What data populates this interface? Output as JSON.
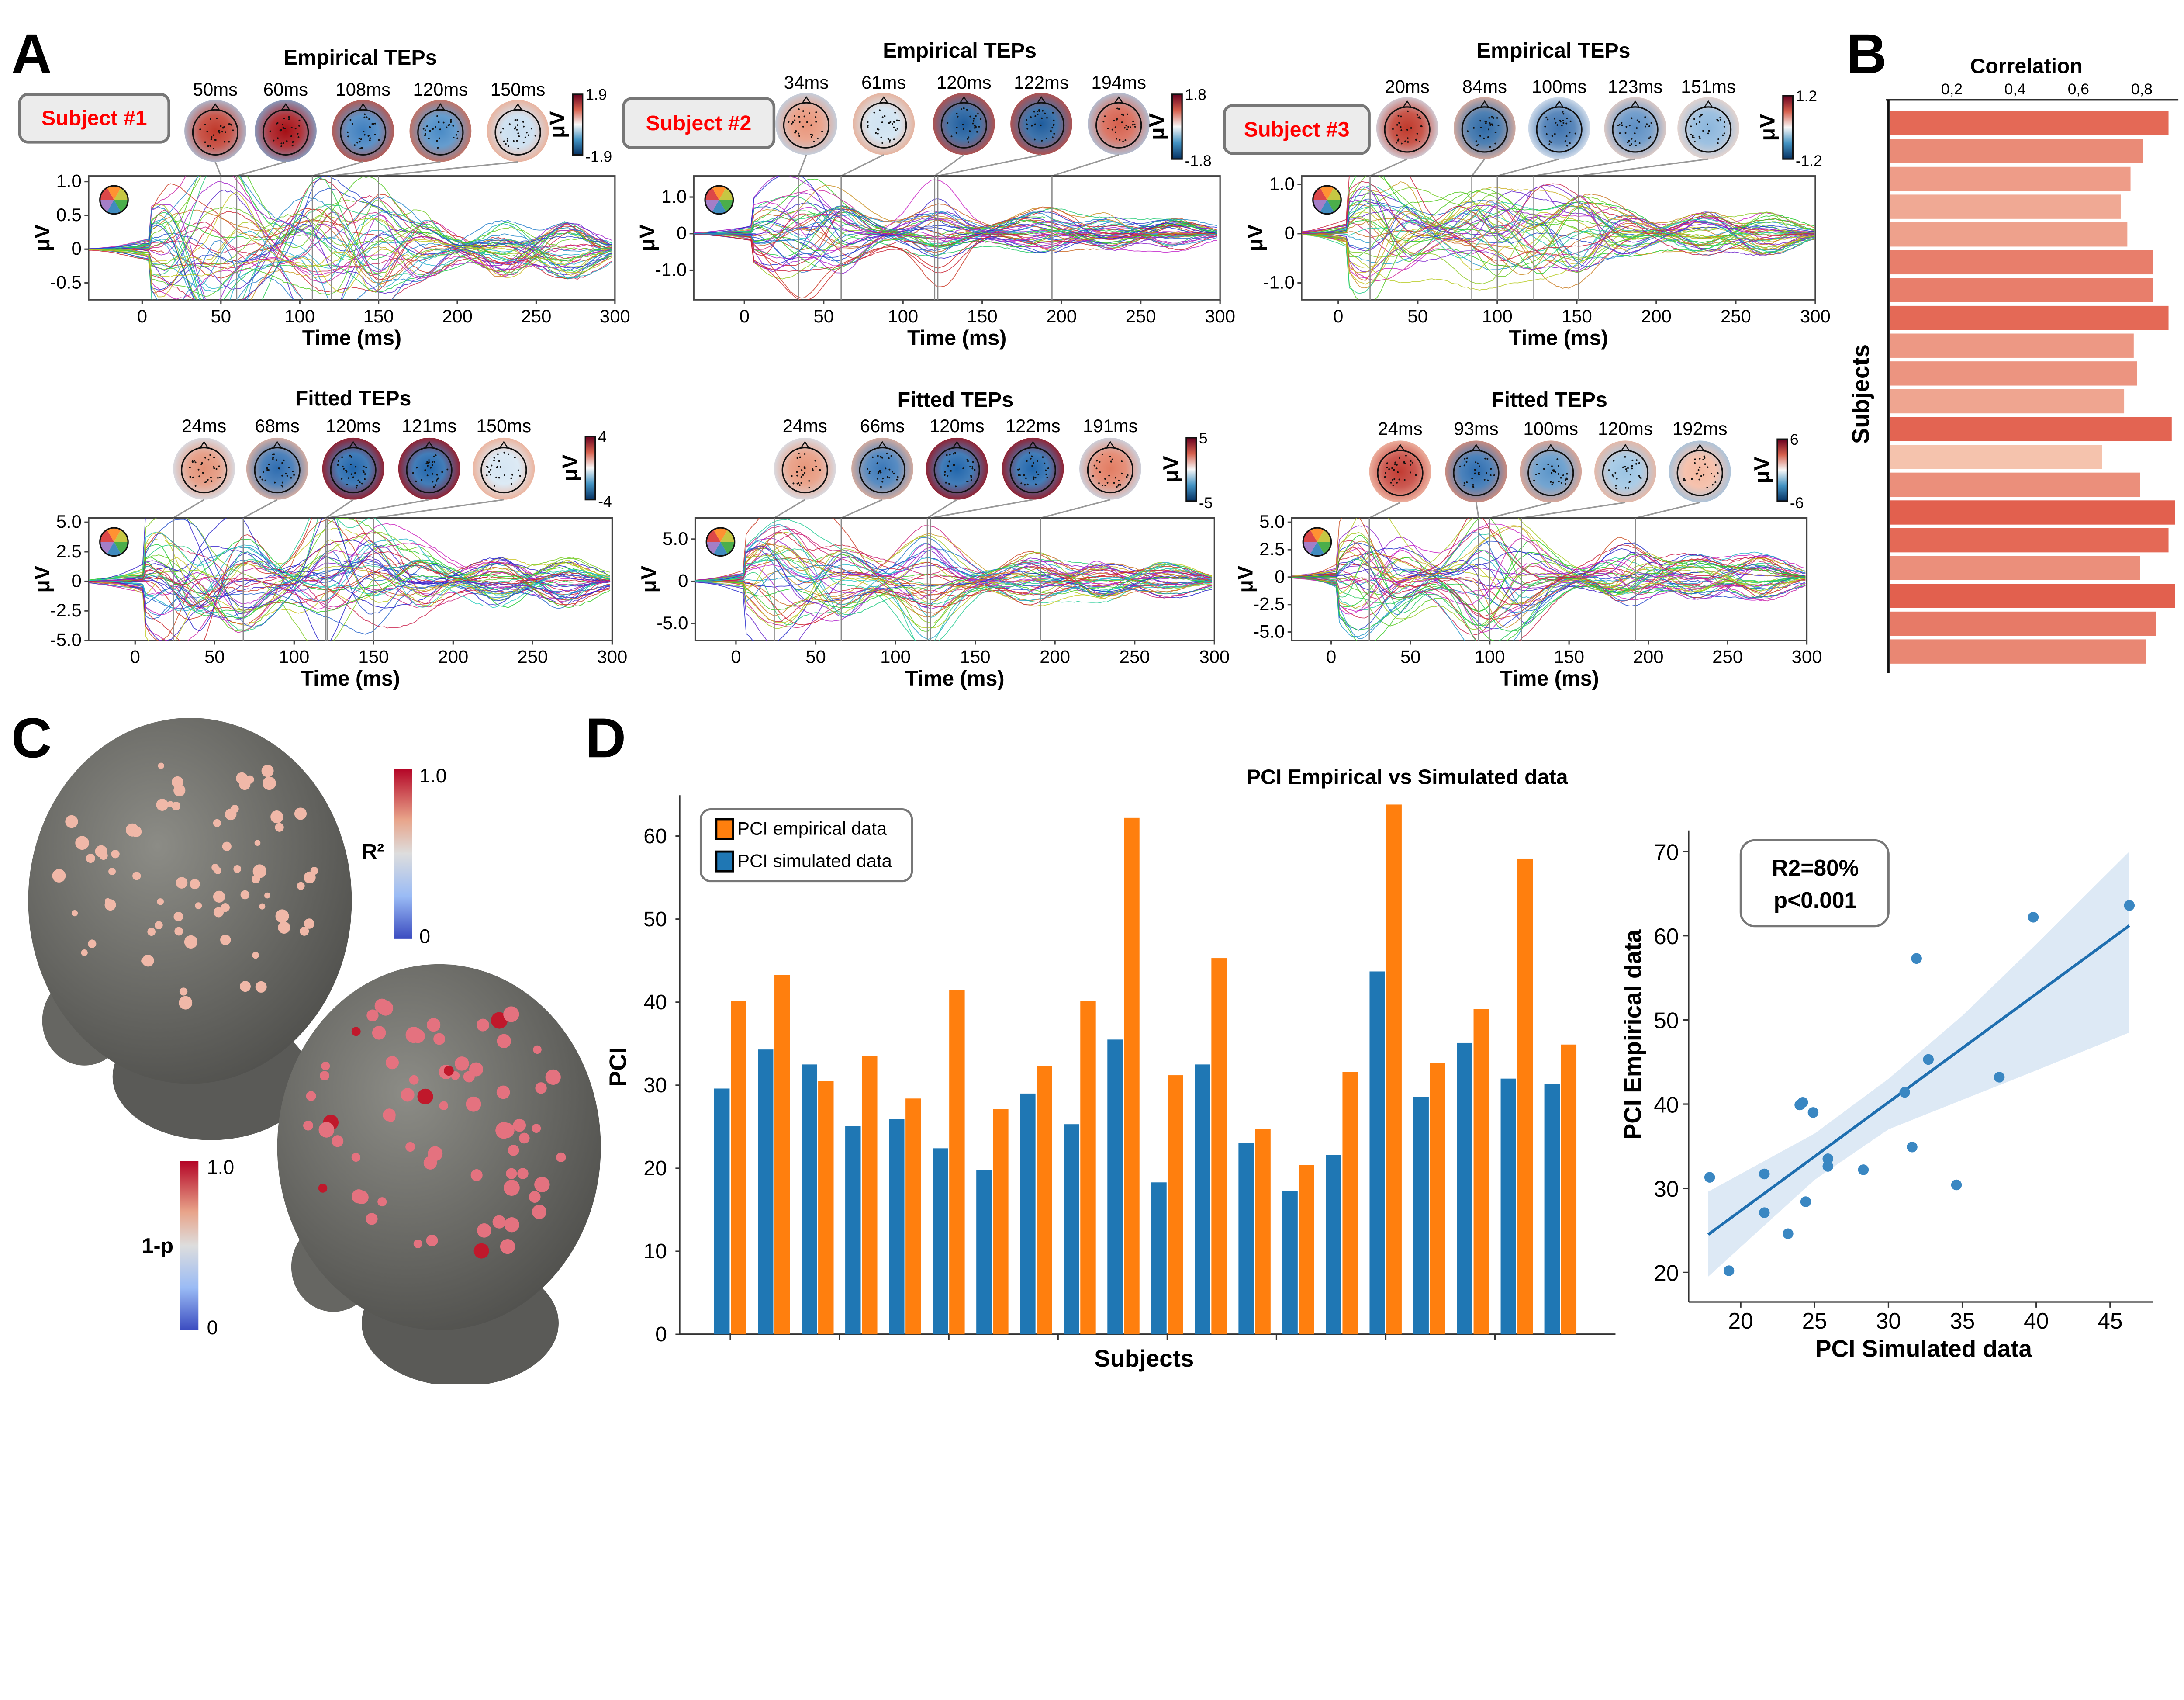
{
  "panel_labels": {
    "a": "A",
    "b": "B",
    "c": "C",
    "d": "D"
  },
  "panel_a": {
    "tep_panels": [
      {
        "id": "s1-empirical",
        "title": "Empirical TEPs",
        "subject_label": "Subject #1",
        "topomaps": [
          {
            "label": "50ms",
            "time": 50,
            "outer": "#a9cbe6",
            "inner": "#c0392b"
          },
          {
            "label": "60ms",
            "time": 60,
            "outer": "#7fb0d8",
            "inner": "#a50f15"
          },
          {
            "label": "108ms",
            "time": 108,
            "outer": "#c9503c",
            "inner": "#3f7fbf"
          },
          {
            "label": "120ms",
            "time": 120,
            "outer": "#d66a4f",
            "inner": "#4a8bc6"
          },
          {
            "label": "150ms",
            "time": 150,
            "outer": "#f0a98c",
            "inner": "#c8ddef"
          }
        ],
        "colorbar": {
          "max": "1.9",
          "min": "-1.9",
          "unit": "μV"
        },
        "xticks": [
          "0",
          "50",
          "100",
          "150",
          "200",
          "250",
          "300"
        ],
        "yticks": [
          {
            "label": "1.0",
            "value": 1
          },
          {
            "label": "0.5",
            "value": 0.5
          },
          {
            "label": "0",
            "value": 0
          },
          {
            "label": "-0.5",
            "value": -0.5
          }
        ],
        "xlabel": "Time (ms)",
        "ylabel": "μV"
      },
      {
        "id": "s2-empirical",
        "title": "Empirical TEPs",
        "subject_label": "Subject #2",
        "topomaps": [
          {
            "label": "34ms",
            "time": 34,
            "outer": "#bcd7ec",
            "inner": "#e8957a"
          },
          {
            "label": "61ms",
            "time": 61,
            "outer": "#eaa88c",
            "inner": "#cfe2f1"
          },
          {
            "label": "120ms",
            "time": 120,
            "outer": "#c94a3c",
            "inner": "#1f5d9e"
          },
          {
            "label": "122ms",
            "time": 122,
            "outer": "#c94a3c",
            "inner": "#1f5d9e"
          },
          {
            "label": "194ms",
            "time": 194,
            "outer": "#a9cbe6",
            "inner": "#d6604d"
          }
        ],
        "colorbar": {
          "max": "1.8",
          "min": "-1.8",
          "unit": "μV"
        },
        "xticks": [
          "0",
          "50",
          "100",
          "150",
          "200",
          "250",
          "300"
        ],
        "yticks": [
          {
            "label": "1.0",
            "value": 1
          },
          {
            "label": "0",
            "value": 0
          },
          {
            "label": "-1.0",
            "value": -1
          }
        ],
        "xlabel": "Time (ms)",
        "ylabel": "μV"
      },
      {
        "id": "s3-empirical",
        "title": "Empirical TEPs",
        "subject_label": "Subject #3",
        "topomaps": [
          {
            "label": "20ms",
            "time": 20,
            "outer": "#d3e4f2",
            "inner": "#c0392b"
          },
          {
            "label": "84ms",
            "time": 84,
            "outer": "#f0b39a",
            "inner": "#2f6aa6"
          },
          {
            "label": "100ms",
            "time": 100,
            "outer": "#e9eef5",
            "inner": "#3f74b0"
          },
          {
            "label": "123ms",
            "time": 123,
            "outer": "#f3d3c4",
            "inner": "#5d8fc4"
          },
          {
            "label": "151ms",
            "time": 151,
            "outer": "#f3d8cb",
            "inner": "#8cb6dc"
          }
        ],
        "colorbar": {
          "max": "1.2",
          "min": "-1.2",
          "unit": "μV"
        },
        "xticks": [
          "0",
          "50",
          "100",
          "150",
          "200",
          "250",
          "300"
        ],
        "yticks": [
          {
            "label": "1.0",
            "value": 1
          },
          {
            "label": "0",
            "value": 0
          },
          {
            "label": "-1.0",
            "value": -1
          }
        ],
        "xlabel": "Time (ms)",
        "ylabel": "μV"
      },
      {
        "id": "s1-fitted",
        "title": "Fitted TEPs",
        "subject_label": null,
        "topomaps": [
          {
            "label": "24ms",
            "time": 24,
            "outer": "#d6e6f3",
            "inner": "#e39277"
          },
          {
            "label": "68ms",
            "time": 68,
            "outer": "#f1b69c",
            "inner": "#2f6db0"
          },
          {
            "label": "120ms",
            "time": 120,
            "outer": "#a50f15",
            "inner": "#2166ac"
          },
          {
            "label": "121ms",
            "time": 121,
            "outer": "#a50f15",
            "inner": "#2166ac"
          },
          {
            "label": "150ms",
            "time": 150,
            "outer": "#f0a98c",
            "inner": "#d6e6f3"
          }
        ],
        "colorbar": {
          "max": "4",
          "min": "-4",
          "unit": "μV"
        },
        "xticks": [
          "0",
          "50",
          "100",
          "150",
          "200",
          "250",
          "300"
        ],
        "yticks": [
          {
            "label": "5.0",
            "value": 5
          },
          {
            "label": "2.5",
            "value": 2.5
          },
          {
            "label": "0",
            "value": 0
          },
          {
            "label": "-2.5",
            "value": -2.5
          },
          {
            "label": "-5.0",
            "value": -5
          }
        ],
        "xlabel": "Time (ms)",
        "ylabel": "μV"
      },
      {
        "id": "s2-fitted",
        "title": "Fitted TEPs",
        "subject_label": null,
        "topomaps": [
          {
            "label": "24ms",
            "time": 24,
            "outer": "#d6e6f3",
            "inner": "#e7967a"
          },
          {
            "label": "66ms",
            "time": 66,
            "outer": "#f0b296",
            "inner": "#3b78b8"
          },
          {
            "label": "120ms",
            "time": 120,
            "outer": "#a50f15",
            "inner": "#2166ac"
          },
          {
            "label": "122ms",
            "time": 122,
            "outer": "#a50f15",
            "inner": "#2166ac"
          },
          {
            "label": "191ms",
            "time": 191,
            "outer": "#c8def0",
            "inner": "#e27d63"
          }
        ],
        "colorbar": {
          "max": "5",
          "min": "-5",
          "unit": "μV"
        },
        "xticks": [
          "0",
          "50",
          "100",
          "150",
          "200",
          "250",
          "300"
        ],
        "yticks": [
          {
            "label": "5.0",
            "value": 5
          },
          {
            "label": "0",
            "value": 0
          },
          {
            "label": "-5.0",
            "value": -5
          }
        ],
        "xlabel": "Time (ms)",
        "ylabel": "μV"
      },
      {
        "id": "s3-fitted",
        "title": "Fitted TEPs",
        "subject_label": null,
        "topomaps": [
          {
            "label": "24ms",
            "time": 24,
            "outer": "#f4c4b0",
            "inner": "#c23b32"
          },
          {
            "label": "93ms",
            "time": 93,
            "outer": "#e88d70",
            "inner": "#2d6db0"
          },
          {
            "label": "100ms",
            "time": 100,
            "outer": "#f0a68a",
            "inner": "#5b95c9"
          },
          {
            "label": "120ms",
            "time": 120,
            "outer": "#f2b49a",
            "inner": "#9cc4e3"
          },
          {
            "label": "192ms",
            "time": 192,
            "outer": "#9dc4e3",
            "inner": "#f4b8a0"
          }
        ],
        "colorbar": {
          "max": "6",
          "min": "-6",
          "unit": "μV"
        },
        "xticks": [
          "0",
          "50",
          "100",
          "150",
          "200",
          "250",
          "300"
        ],
        "yticks": [
          {
            "label": "5.0",
            "value": 5
          },
          {
            "label": "2.5",
            "value": 2.5
          },
          {
            "label": "0",
            "value": 0
          },
          {
            "label": "-2.5",
            "value": -2.5
          },
          {
            "label": "-5.0",
            "value": -5
          }
        ],
        "xlabel": "Time (ms)",
        "ylabel": "μV"
      }
    ]
  },
  "panel_c": {
    "r2_colorbar": {
      "label": "R²",
      "max": "1.0",
      "min": "0"
    },
    "p_colorbar": {
      "label": "1-p",
      "max": "1.0",
      "min": "0"
    },
    "colors": {
      "head": "#6e6e6a",
      "electrode_r2": "#f0b8a8",
      "electrode_p": "#e4727f",
      "electrode_significant": "#c0182b"
    }
  },
  "chart_data": [
    {
      "panel": "B",
      "type": "bar",
      "orientation": "horizontal",
      "title": "Correlation",
      "xlabel": "",
      "ylabel": "Subjects",
      "xticks": [
        "0,2",
        "0,4",
        "0,6",
        "0,8"
      ],
      "xtick_values": [
        0.2,
        0.4,
        0.6,
        0.8
      ],
      "xlim": [
        0,
        0.92
      ],
      "values": [
        0.88,
        0.8,
        0.76,
        0.73,
        0.75,
        0.83,
        0.83,
        0.88,
        0.77,
        0.78,
        0.74,
        0.89,
        0.67,
        0.79,
        0.9,
        0.88,
        0.79,
        0.9,
        0.84,
        0.81
      ],
      "colors": {
        "low": "#f5c3ad",
        "high": "#e2604e"
      }
    },
    {
      "panel": "D",
      "type": "bar",
      "title": "PCI Empirical vs Simulated data",
      "xlabel": "Subjects",
      "ylabel": "PCI",
      "ylim": [
        0,
        65
      ],
      "yticks": [
        "0",
        "10",
        "20",
        "30",
        "40",
        "50",
        "60"
      ],
      "legend": "top-left",
      "series": [
        {
          "name": "PCI simulated data",
          "color": "#1f77b4",
          "values": [
            29.6,
            34.3,
            32.5,
            25.1,
            25.9,
            22.4,
            19.8,
            29.0,
            25.3,
            35.5,
            18.3,
            32.5,
            23.0,
            17.3,
            21.6,
            43.7,
            28.6,
            35.1,
            30.8,
            30.2
          ]
        },
        {
          "name": "PCI empirical data",
          "color": "#ff7f0e",
          "values": [
            40.2,
            43.3,
            30.5,
            33.5,
            28.4,
            41.5,
            27.1,
            32.3,
            40.1,
            62.2,
            31.2,
            45.3,
            24.7,
            20.4,
            31.6,
            63.8,
            32.7,
            39.2,
            57.3,
            34.9
          ]
        }
      ]
    },
    {
      "panel": "D",
      "type": "scatter",
      "xlabel": "PCI Simulated data",
      "ylabel": "PCI Empirical data",
      "xticks": [
        "20",
        "25",
        "30",
        "35",
        "40",
        "45"
      ],
      "yticks": [
        "20",
        "30",
        "40",
        "50",
        "60",
        "70"
      ],
      "xlim": [
        16.5,
        47.5
      ],
      "ylim": [
        16.5,
        72
      ],
      "annotation": {
        "line1": "R2=80%",
        "line2": "p<0.001"
      },
      "color": "#1f77b4",
      "points": [
        [
          17.9,
          31.3
        ],
        [
          19.2,
          20.2
        ],
        [
          21.6,
          31.7
        ],
        [
          21.6,
          27.1
        ],
        [
          23.2,
          24.6
        ],
        [
          24.0,
          39.9
        ],
        [
          24.2,
          40.2
        ],
        [
          24.4,
          28.4
        ],
        [
          24.9,
          39.0
        ],
        [
          25.9,
          33.5
        ],
        [
          25.9,
          32.6
        ],
        [
          28.3,
          32.2
        ],
        [
          31.1,
          41.4
        ],
        [
          31.6,
          34.9
        ],
        [
          31.9,
          57.3
        ],
        [
          32.7,
          45.3
        ],
        [
          34.6,
          30.4
        ],
        [
          37.5,
          43.2
        ],
        [
          39.8,
          62.2
        ],
        [
          46.3,
          63.6
        ]
      ],
      "regression_line": [
        [
          17.8,
          24.5
        ],
        [
          46.3,
          61.2
        ]
      ],
      "confidence_band": {
        "x": [
          17.8,
          25,
          30,
          35,
          40,
          46.3
        ],
        "upper": [
          29.6,
          36.5,
          43,
          50.5,
          59,
          70
        ],
        "lower": [
          19.5,
          31,
          37,
          40.5,
          44,
          48.5
        ]
      }
    }
  ]
}
